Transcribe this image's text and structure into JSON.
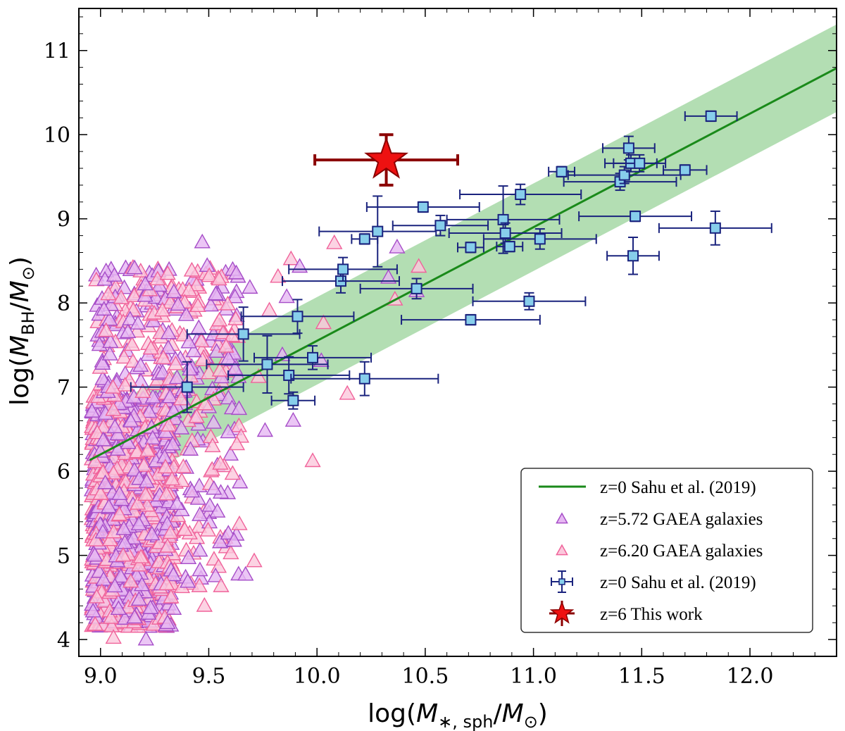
{
  "chart_data": {
    "type": "scatter",
    "xlabel": "log(M*,sph/M⊙)",
    "ylabel": "log(MBH/M⊙)",
    "xlim": [
      8.9,
      12.4
    ],
    "ylim": [
      3.8,
      11.5
    ],
    "x_ticks": [
      "9.0",
      "9.5",
      "10.0",
      "10.5",
      "11.0",
      "11.5",
      "12.0"
    ],
    "y_ticks": [
      "4",
      "5",
      "6",
      "7",
      "8",
      "9",
      "10",
      "11"
    ],
    "legend_position": "lower-right",
    "relation": {
      "name": "z=0 Sahu et al. (2019)",
      "x_range": [
        8.95,
        12.4
      ],
      "slope": 1.35,
      "intercept_at_x10": 7.55,
      "band_halfwidth": 0.52,
      "color": "#1a8a1a",
      "band_color": "#a6d8a6"
    },
    "gaea": {
      "series": [
        {
          "name": "z=5.72 GAEA galaxies",
          "color": "#a64dc8",
          "fill": "#e6b8f2"
        },
        {
          "name": "z=6.20 GAEA galaxies",
          "color": "#f0629a",
          "fill": "#fbc8dc"
        }
      ],
      "outliers": [
        [
          9.47,
          8.72
        ],
        [
          9.88,
          8.52
        ],
        [
          9.92,
          8.43
        ],
        [
          10.08,
          8.71
        ],
        [
          10.37,
          8.66
        ],
        [
          10.47,
          8.43
        ],
        [
          10.33,
          8.3
        ],
        [
          10.36,
          8.04
        ],
        [
          10.46,
          8.14
        ],
        [
          10.03,
          7.76
        ],
        [
          10.02,
          7.31
        ],
        [
          10.14,
          6.92
        ],
        [
          9.89,
          6.6
        ],
        [
          9.98,
          6.12
        ],
        [
          9.76,
          6.48
        ],
        [
          9.63,
          6.32
        ],
        [
          9.54,
          5.52
        ],
        [
          9.71,
          4.93
        ],
        [
          9.67,
          4.77
        ],
        [
          9.48,
          4.4
        ],
        [
          9.21,
          4.0
        ],
        [
          9.06,
          4.02
        ],
        [
          9.84,
          7.38
        ],
        [
          9.73,
          7.12
        ],
        [
          9.64,
          6.74
        ],
        [
          9.78,
          7.91
        ],
        [
          9.69,
          8.18
        ],
        [
          9.82,
          8.31
        ],
        [
          9.86,
          8.07
        ],
        [
          9.58,
          7.48
        ]
      ]
    },
    "sahu": {
      "name": "z=0 Sahu et al. (2019)",
      "color": "#1a237e",
      "fill": "#87ceeb",
      "points": [
        {
          "x": 9.4,
          "y": 7.0,
          "xerr": 0.26,
          "yerr": 0.3
        },
        {
          "x": 9.66,
          "y": 7.63,
          "xerr": 0.26,
          "yerr": 0.32
        },
        {
          "x": 9.77,
          "y": 7.27,
          "xerr": 0.28,
          "yerr": 0.34
        },
        {
          "x": 9.87,
          "y": 7.14,
          "xerr": 0.28,
          "yerr": 0.22
        },
        {
          "x": 9.89,
          "y": 6.84,
          "xerr": 0.1,
          "yerr": 0.1
        },
        {
          "x": 9.91,
          "y": 7.84,
          "xerr": 0.26,
          "yerr": 0.2
        },
        {
          "x": 9.98,
          "y": 7.35,
          "xerr": 0.27,
          "yerr": 0.14
        },
        {
          "x": 10.11,
          "y": 8.26,
          "xerr": 0.27,
          "yerr": 0.14
        },
        {
          "x": 10.12,
          "y": 8.4,
          "xerr": 0.25,
          "yerr": 0.14
        },
        {
          "x": 10.22,
          "y": 8.76,
          "xerr": 0.06,
          "yerr": 0.06
        },
        {
          "x": 10.22,
          "y": 7.1,
          "xerr": 0.34,
          "yerr": 0.2
        },
        {
          "x": 10.28,
          "y": 8.85,
          "xerr": 0.27,
          "yerr": 0.42
        },
        {
          "x": 10.46,
          "y": 8.17,
          "xerr": 0.26,
          "yerr": 0.12
        },
        {
          "x": 10.49,
          "y": 9.14,
          "xerr": 0.26,
          "yerr": 0.06
        },
        {
          "x": 10.57,
          "y": 8.92,
          "xerr": 0.22,
          "yerr": 0.12
        },
        {
          "x": 10.71,
          "y": 8.66,
          "xerr": 0.06,
          "yerr": 0.06
        },
        {
          "x": 10.71,
          "y": 7.8,
          "xerr": 0.32,
          "yerr": 0.06
        },
        {
          "x": 10.86,
          "y": 8.99,
          "xerr": 0.26,
          "yerr": 0.4
        },
        {
          "x": 10.87,
          "y": 8.83,
          "xerr": 0.26,
          "yerr": 0.12
        },
        {
          "x": 10.89,
          "y": 8.67,
          "xerr": 0.06,
          "yerr": 0.06
        },
        {
          "x": 10.94,
          "y": 9.29,
          "xerr": 0.28,
          "yerr": 0.12
        },
        {
          "x": 10.98,
          "y": 8.02,
          "xerr": 0.26,
          "yerr": 0.1
        },
        {
          "x": 11.03,
          "y": 8.76,
          "xerr": 0.26,
          "yerr": 0.12
        },
        {
          "x": 11.13,
          "y": 9.56,
          "xerr": 0.06,
          "yerr": 0.06
        },
        {
          "x": 11.4,
          "y": 9.44,
          "xerr": 0.26,
          "yerr": 0.1
        },
        {
          "x": 11.42,
          "y": 9.52,
          "xerr": 0.26,
          "yerr": 0.1
        },
        {
          "x": 11.44,
          "y": 9.84,
          "xerr": 0.12,
          "yerr": 0.14
        },
        {
          "x": 11.45,
          "y": 9.66,
          "xerr": 0.12,
          "yerr": 0.1
        },
        {
          "x": 11.46,
          "y": 8.56,
          "xerr": 0.12,
          "yerr": 0.22
        },
        {
          "x": 11.47,
          "y": 9.03,
          "xerr": 0.26,
          "yerr": 0.06
        },
        {
          "x": 11.49,
          "y": 9.66,
          "xerr": 0.12,
          "yerr": 0.1
        },
        {
          "x": 11.7,
          "y": 9.58,
          "xerr": 0.1,
          "yerr": 0.06
        },
        {
          "x": 11.82,
          "y": 10.22,
          "xerr": 0.12,
          "yerr": 0.06
        },
        {
          "x": 11.84,
          "y": 8.89,
          "xerr": 0.26,
          "yerr": 0.2
        }
      ]
    },
    "this_work": {
      "name": "z=6 This work",
      "x": 10.32,
      "y": 9.7,
      "xerr": 0.33,
      "yerr": 0.3,
      "color": "#8b0000",
      "fill": "#ee1111"
    },
    "legend": [
      "z=0 Sahu et al. (2019)",
      "z=5.72 GAEA galaxies",
      "z=6.20 GAEA galaxies",
      "z=0 Sahu et al. (2019)",
      "z=6 This work"
    ]
  }
}
